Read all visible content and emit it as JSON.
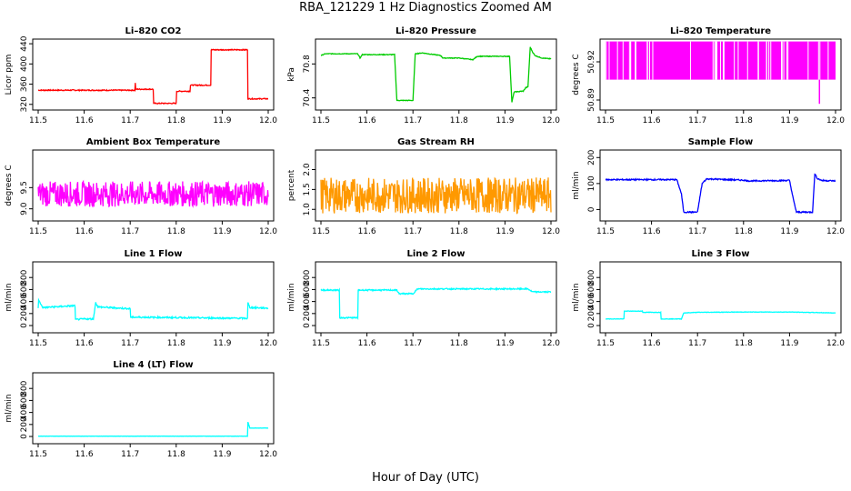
{
  "page": {
    "title": "RBA_121229  1 Hz Diagnostics Zoomed AM",
    "xlabel": "Hour of Day (UTC)"
  },
  "chart_data": [
    {
      "type": "line",
      "title": "Li–820 CO2",
      "ylabel": "Licor ppm",
      "color": "#ff0000",
      "xlim": [
        11.5,
        12.0
      ],
      "xticks": [
        "11.5",
        "11.6",
        "11.7",
        "11.8",
        "11.9",
        "12.0"
      ],
      "ylim": [
        316,
        442
      ],
      "yticks": [
        320,
        360,
        400,
        440
      ],
      "x": [
        11.5,
        11.7,
        11.71,
        11.711,
        11.712,
        11.713,
        11.75,
        11.751,
        11.8,
        11.801,
        11.83,
        11.831,
        11.875,
        11.876,
        11.955,
        11.956,
        11.965,
        12.0
      ],
      "y": [
        348,
        348,
        348,
        362,
        350,
        350,
        350,
        322,
        322,
        346,
        346,
        358,
        358,
        428,
        428,
        331,
        331,
        331
      ],
      "noise": 2
    },
    {
      "type": "line",
      "title": "Li–820 Pressure",
      "ylabel": "kPa",
      "color": "#00cc00",
      "xlim": [
        11.5,
        12.0
      ],
      "xticks": [
        "11.5",
        "11.6",
        "11.7",
        "11.8",
        "11.9",
        "12.0"
      ],
      "ylim": [
        70.3,
        71.05
      ],
      "yticks": [
        70.4,
        70.8
      ],
      "ytick_labels": [
        "70.4",
        "70.8"
      ],
      "x": [
        11.5,
        11.51,
        11.58,
        11.585,
        11.59,
        11.66,
        11.665,
        11.7,
        11.705,
        11.72,
        11.76,
        11.765,
        11.8,
        11.83,
        11.84,
        11.91,
        11.915,
        11.92,
        11.94,
        11.945,
        11.95,
        11.955,
        11.96,
        11.965,
        11.98,
        12.0
      ],
      "y": [
        70.9,
        70.92,
        70.92,
        70.87,
        70.91,
        70.91,
        70.37,
        70.37,
        70.92,
        70.93,
        70.9,
        70.87,
        70.87,
        70.85,
        70.89,
        70.89,
        70.35,
        70.47,
        70.48,
        70.52,
        70.53,
        71.0,
        70.94,
        70.9,
        70.87,
        70.86
      ],
      "noise": 0.008
    },
    {
      "type": "line",
      "title": "Li–820 Temperature",
      "ylabel": "degrees C",
      "color": "#ff00ff",
      "xlim": [
        11.5,
        12.0
      ],
      "xticks": [
        "11.5",
        "11.6",
        "11.7",
        "11.8",
        "11.9",
        "12.0"
      ],
      "ylim": [
        50.885,
        50.935
      ],
      "yticks": [
        50.89,
        50.92
      ],
      "ytick_labels": [
        "50.89",
        "50.92"
      ],
      "x": [
        11.5,
        12.0
      ],
      "y": [
        50.905,
        50.905
      ],
      "band": [
        50.906,
        50.936
      ],
      "dropout_x": 11.965,
      "dropout_y": 50.887
    },
    {
      "type": "line",
      "title": "Ambient Box Temperature",
      "ylabel": "degrees C",
      "color": "#ff00ff",
      "xlim": [
        11.5,
        12.0
      ],
      "xticks": [
        "11.5",
        "11.6",
        "11.7",
        "11.8",
        "11.9",
        "12.0"
      ],
      "ylim": [
        8.8,
        10.3
      ],
      "yticks": [
        9.0,
        9.5
      ],
      "ytick_labels": [
        "9.0",
        "9.5"
      ],
      "x": [
        11.5,
        12.0
      ],
      "y": [
        9.35,
        9.35
      ],
      "noise": 0.6
    },
    {
      "type": "line",
      "title": "Gas Stream RH",
      "ylabel": "percent",
      "color": "#ff9900",
      "xlim": [
        11.5,
        12.0
      ],
      "xticks": [
        "11.5",
        "11.6",
        "11.7",
        "11.8",
        "11.9",
        "12.0"
      ],
      "ylim": [
        0.8,
        2.4
      ],
      "yticks": [
        1.0,
        1.5,
        2.0
      ],
      "ytick_labels": [
        "1.0",
        "1.5",
        "2.0"
      ],
      "x": [
        11.5,
        12.0
      ],
      "y": [
        1.35,
        1.35
      ],
      "noise": 0.9
    },
    {
      "type": "line",
      "title": "Sample Flow",
      "ylabel": "ml/min",
      "color": "#0000ff",
      "xlim": [
        11.5,
        12.0
      ],
      "xticks": [
        "11.5",
        "11.6",
        "11.7",
        "11.8",
        "11.9",
        "12.0"
      ],
      "ylim": [
        -30,
        215
      ],
      "yticks": [
        0,
        100,
        200
      ],
      "x": [
        11.5,
        11.655,
        11.665,
        11.67,
        11.7,
        11.71,
        11.72,
        11.8,
        11.81,
        11.9,
        11.91,
        11.915,
        11.95,
        11.955,
        11.96,
        11.97,
        12.0
      ],
      "y": [
        115,
        115,
        60,
        -10,
        -10,
        100,
        118,
        113,
        110,
        112,
        25,
        -10,
        -10,
        138,
        120,
        112,
        110
      ],
      "noise": 5
    },
    {
      "type": "line",
      "title": "Line 1 Flow",
      "ylabel": "ml/min",
      "color": "#00ffff",
      "xlim": [
        11.5,
        12.0
      ],
      "xticks": [
        "11.5",
        "11.6",
        "11.7",
        "11.8",
        "11.9",
        "12.0"
      ],
      "ylim": [
        -60,
        1000
      ],
      "yticks": [
        0,
        200,
        400,
        600,
        800
      ],
      "x": [
        11.5,
        11.501,
        11.51,
        11.58,
        11.581,
        11.6,
        11.62,
        11.625,
        11.63,
        11.7,
        11.701,
        11.7,
        11.955,
        11.956,
        11.96,
        12.0
      ],
      "y": [
        300,
        420,
        300,
        330,
        100,
        110,
        110,
        380,
        310,
        280,
        140,
        140,
        120,
        380,
        300,
        290
      ],
      "noise": 25
    },
    {
      "type": "line",
      "title": "Line 2 Flow",
      "ylabel": "ml/min",
      "color": "#00ffff",
      "xlim": [
        11.5,
        12.0
      ],
      "xticks": [
        "11.5",
        "11.6",
        "11.7",
        "11.8",
        "11.9",
        "12.0"
      ],
      "ylim": [
        -60,
        1000
      ],
      "yticks": [
        0,
        200,
        400,
        600,
        800
      ],
      "x": [
        11.5,
        11.54,
        11.541,
        11.58,
        11.581,
        11.665,
        11.67,
        11.7,
        11.71,
        11.95,
        11.96,
        12.0
      ],
      "y": [
        590,
        590,
        130,
        130,
        590,
        590,
        530,
        530,
        610,
        610,
        560,
        560
      ],
      "noise": 20
    },
    {
      "type": "line",
      "title": "Line 3 Flow",
      "ylabel": "ml/min",
      "color": "#00ffff",
      "xlim": [
        11.5,
        12.0
      ],
      "xticks": [
        "11.5",
        "11.6",
        "11.7",
        "11.8",
        "11.9",
        "12.0"
      ],
      "ylim": [
        -60,
        1000
      ],
      "yticks": [
        0,
        200,
        400,
        600,
        800
      ],
      "x": [
        11.5,
        11.54,
        11.541,
        11.58,
        11.58,
        11.62,
        11.621,
        11.665,
        11.67,
        11.7,
        11.8,
        11.9,
        12.0
      ],
      "y": [
        110,
        110,
        240,
        240,
        220,
        220,
        110,
        110,
        210,
        220,
        225,
        225,
        210
      ],
      "noise": 8
    },
    {
      "type": "line",
      "title": "Line 4 (LT) Flow",
      "ylabel": "ml/min",
      "color": "#00ffff",
      "xlim": [
        11.5,
        12.0
      ],
      "xticks": [
        "11.5",
        "11.6",
        "11.7",
        "11.8",
        "11.9",
        "12.0"
      ],
      "ylim": [
        -60,
        1000
      ],
      "yticks": [
        0,
        200,
        400,
        600,
        800
      ],
      "x": [
        11.5,
        11.955,
        11.956,
        11.96,
        11.965,
        12.0
      ],
      "y": [
        5,
        5,
        240,
        140,
        140,
        140
      ],
      "noise": 3
    }
  ]
}
